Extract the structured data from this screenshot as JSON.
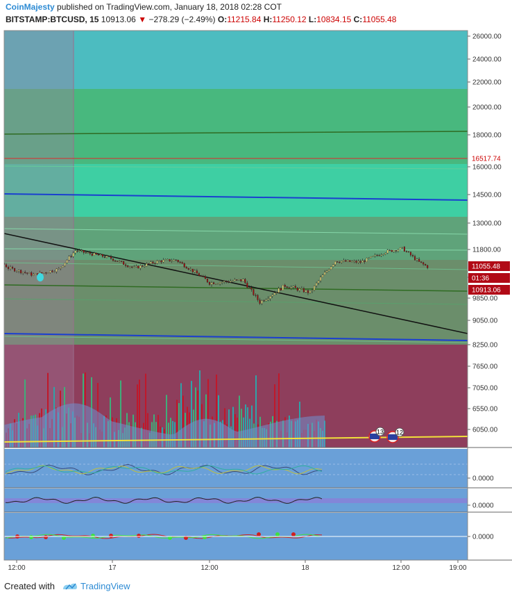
{
  "header": {
    "author": "CoinMajesty",
    "published": "published on TradingView.com, January 18, 2018 02:28 COT",
    "symbol": "BITSTAMP:BTCUSD, 15",
    "last": "10913.06",
    "change": "−278.29 (−2.49%)",
    "o_label": "O:",
    "o": "11215.84",
    "h_label": "H:",
    "h": "11250.12",
    "l_label": "L:",
    "l": "10834.15",
    "c_label": "C:",
    "c": "11055.48"
  },
  "footer": {
    "created": "Created with",
    "brand": "TradingView"
  },
  "colors": {
    "zone_top": "#4cbcc0",
    "zone_green": "#48b87e",
    "zone_teal": "#3ecfa3",
    "zone_mid": "#5fa37a",
    "zone_low": "#6b8e6b",
    "zone_vol": "#8e3e5c",
    "panel_bg": "#6aa0d8",
    "up": "#e8d87a",
    "down": "#9b1010",
    "price_label": "#b10a16"
  },
  "chart_data": {
    "type": "candlestick",
    "x_ticks": [
      "12:00",
      "17",
      "12:00",
      "18",
      "12:00",
      "19:00"
    ],
    "y_ticks": [
      "26000.00",
      "24000.00",
      "22000.00",
      "20000.00",
      "18000.00",
      "16000.00",
      "14500.00",
      "13000.00",
      "11800.00",
      "10600.00",
      "9850.00",
      "9050.00",
      "8250.00",
      "7650.00",
      "7050.00",
      "6550.00",
      "6050.00"
    ],
    "price_labels": {
      "high_line": "16517.74",
      "close": "11055.48",
      "countdown": "01:36",
      "last": "10913.06"
    },
    "approx_price_path": [
      {
        "t": "16 06:00",
        "p": 12350
      },
      {
        "t": "16 09:00",
        "p": 11900
      },
      {
        "t": "16 12:00",
        "p": 11000
      },
      {
        "t": "16 15:00",
        "p": 10700
      },
      {
        "t": "16 18:00",
        "p": 10950
      },
      {
        "t": "16 20:00",
        "p": 11750
      },
      {
        "t": "17 00:00",
        "p": 11450
      },
      {
        "t": "17 03:00",
        "p": 11000
      },
      {
        "t": "17 06:00",
        "p": 11300
      },
      {
        "t": "17 08:00",
        "p": 11350
      },
      {
        "t": "17 12:00",
        "p": 10400
      },
      {
        "t": "17 16:00",
        "p": 10500
      },
      {
        "t": "17 18:00",
        "p": 9700
      },
      {
        "t": "17 21:00",
        "p": 10300
      },
      {
        "t": "18 00:00",
        "p": 10050
      },
      {
        "t": "18 03:00",
        "p": 11300
      },
      {
        "t": "18 06:00",
        "p": 11250
      },
      {
        "t": "18 09:00",
        "p": 11700
      },
      {
        "t": "18 11:00",
        "p": 11850
      },
      {
        "t": "18 13:00",
        "p": 11250
      },
      {
        "t": "18 14:00",
        "p": 11055
      }
    ],
    "events": [
      "13",
      "12"
    ],
    "indicator_values": [
      "0.0000",
      "0.0000",
      "0.0000"
    ]
  }
}
